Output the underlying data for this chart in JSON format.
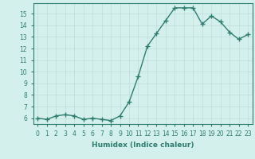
{
  "x": [
    0,
    1,
    2,
    3,
    4,
    5,
    6,
    7,
    8,
    9,
    10,
    11,
    12,
    13,
    14,
    15,
    16,
    17,
    18,
    19,
    20,
    21,
    22,
    23
  ],
  "y": [
    6.0,
    5.9,
    6.2,
    6.3,
    6.2,
    5.9,
    6.0,
    5.9,
    5.8,
    6.2,
    7.4,
    9.6,
    12.2,
    13.3,
    14.4,
    15.5,
    15.5,
    15.5,
    14.1,
    14.8,
    14.3,
    13.4,
    12.8,
    13.2
  ],
  "line_color": "#2e7d6e",
  "marker": "+",
  "marker_size": 4,
  "bg_color": "#d4f0ed",
  "grid_color": "#c0dcd8",
  "xlabel": "Humidex (Indice chaleur)",
  "xlim": [
    -0.5,
    23.5
  ],
  "ylim": [
    5.5,
    15.9
  ],
  "yticks": [
    6,
    7,
    8,
    9,
    10,
    11,
    12,
    13,
    14,
    15
  ],
  "xticks": [
    0,
    1,
    2,
    3,
    4,
    5,
    6,
    7,
    8,
    9,
    10,
    11,
    12,
    13,
    14,
    15,
    16,
    17,
    18,
    19,
    20,
    21,
    22,
    23
  ],
  "tick_fontsize": 5.5,
  "label_fontsize": 6.5,
  "line_width": 1.0
}
